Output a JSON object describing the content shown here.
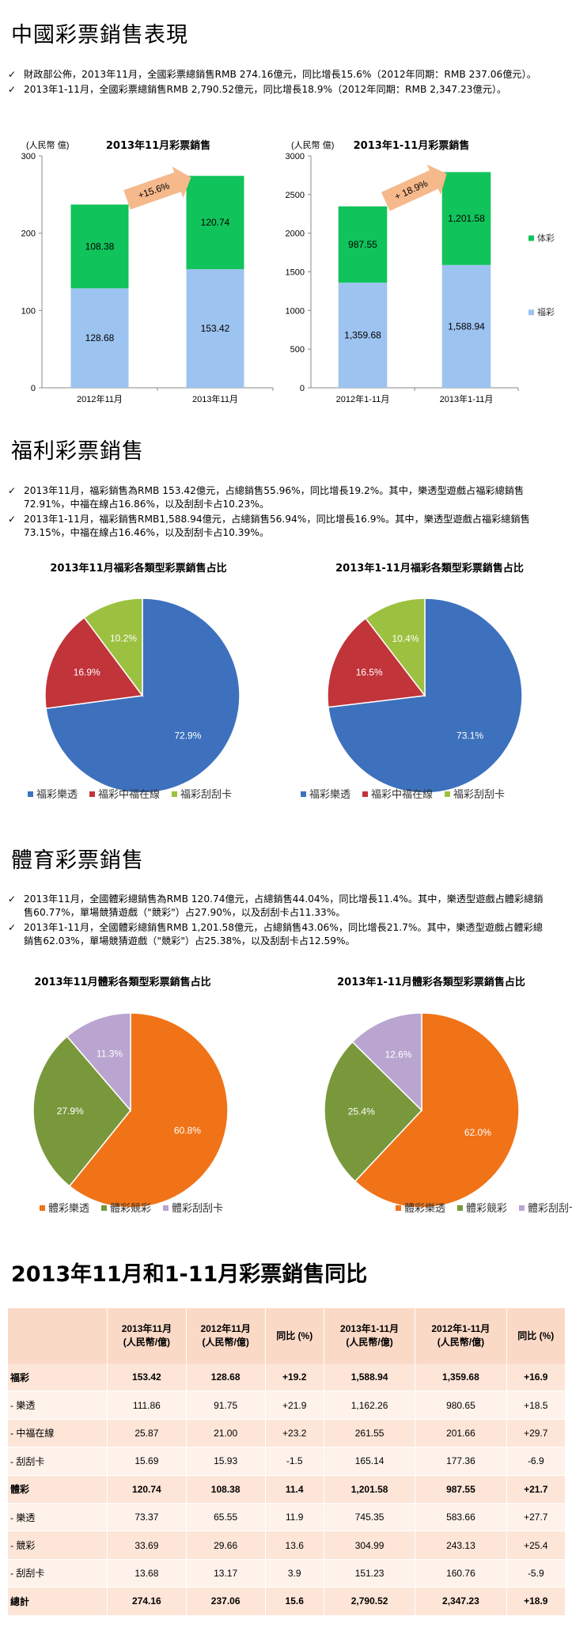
{
  "sections": {
    "overview_title": "中國彩票銷售表現",
    "welfare_title": "福利彩票銷售",
    "sports_title": "體育彩票銷售",
    "compare_title": "2013年11月和1-11月彩票銷售同比"
  },
  "bullets": {
    "overview": [
      "財政部公佈，2013年11月，全國彩票總銷售RMB 274.16億元，同比增長15.6%（2012年同期：RMB 237.06億元）。",
      "2013年1-11月，全國彩票總銷售RMB 2,790.52億元，同比增長18.9%（2012年同期：RMB 2,347.23億元）。"
    ],
    "welfare": [
      "2013年11月，福彩銷售為RMB 153.42億元，占總銷售55.96%，同比增長19.2%。其中，樂透型遊戲占福彩總銷售72.91%，中福在線占16.86%，以及刮刮卡占10.23%。",
      "2013年1-11月，福彩銷售RMB1,588.94億元，占總銷售56.94%，同比增長16.9%。其中，樂透型遊戲占福彩總銷售73.15%，中福在線占16.46%，以及刮刮卡占10.39%。"
    ],
    "sports": [
      "2013年11月，全國體彩總銷售為RMB 120.74億元，占總銷售44.04%，同比增長11.4%。其中，樂透型遊戲占體彩總銷售60.77%，單場競猜遊戲（\"競彩\"）占27.90%，以及刮刮卡占11.33%。",
      "2013年1-11月，全國體彩總銷售RMB 1,201.58億元，占總銷售43.06%，同比增長21.7%。其中，樂透型遊戲占體彩總銷售62.03%，單場競猜遊戲（\"競彩\"）占25.38%，以及刮刮卡占12.59%。"
    ]
  },
  "colors": {
    "welfare_bar": "#9dc3f0",
    "sports_bar": "#10c35a",
    "pie_blue": "#3d71bd",
    "pie_red": "#c1343a",
    "pie_green": "#9cc140",
    "pie_orange": "#f07318",
    "pie_olive": "#79983c",
    "pie_lilac": "#b9a5d0",
    "arrow": "#f6b98c"
  },
  "legend": {
    "sports": "体彩",
    "welfare": "福彩"
  },
  "chart_data": [
    {
      "type": "bar",
      "stacked": true,
      "title": "2013年11月彩票銷售",
      "ylabel": "(人民幣 億)",
      "ylim": [
        0,
        300
      ],
      "yticks": [
        "0",
        "100",
        "200",
        "300"
      ],
      "categories": [
        "2012年11月",
        "2013年11月"
      ],
      "series": [
        {
          "name": "福彩",
          "values": [
            128.68,
            153.42
          ],
          "labels": [
            "128.68",
            "153.42"
          ]
        },
        {
          "name": "体彩",
          "values": [
            108.38,
            120.74
          ],
          "labels": [
            "108.38",
            "120.74"
          ]
        }
      ],
      "annotation": "+15.6%"
    },
    {
      "type": "bar",
      "stacked": true,
      "title": "2013年1-11月彩票銷售",
      "ylabel": "(人民幣 億)",
      "ylim": [
        0,
        3000
      ],
      "yticks": [
        "0",
        "500",
        "1000",
        "1500",
        "2000",
        "2500",
        "3000"
      ],
      "categories": [
        "2012年1-11月",
        "2013年1-11月"
      ],
      "series": [
        {
          "name": "福彩",
          "values": [
            1359.68,
            1588.94
          ],
          "labels": [
            "1,359.68",
            "1,588.94"
          ]
        },
        {
          "name": "体彩",
          "values": [
            987.55,
            1201.58
          ],
          "labels": [
            "987.55",
            "1,201.58"
          ]
        }
      ],
      "annotation": "+ 18.9%",
      "legend": "right"
    },
    {
      "type": "pie",
      "title": "2013年11月福彩各類型彩票銷售占比",
      "slices": [
        {
          "name": "福彩樂透",
          "value": 72.9,
          "label": "72.9%"
        },
        {
          "name": "福彩中福在線",
          "value": 16.9,
          "label": "16.9%"
        },
        {
          "name": "福彩刮刮卡",
          "value": 10.2,
          "label": "10.2%"
        }
      ],
      "legend": "bottom"
    },
    {
      "type": "pie",
      "title": "2013年1-11月福彩各類型彩票銷售占比",
      "slices": [
        {
          "name": "福彩樂透",
          "value": 73.1,
          "label": "73.1%"
        },
        {
          "name": "福彩中福在線",
          "value": 16.5,
          "label": "16.5%"
        },
        {
          "name": "福彩刮刮卡",
          "value": 10.4,
          "label": "10.4%"
        }
      ],
      "legend": "bottom"
    },
    {
      "type": "pie",
      "title": "2013年11月體彩各類型彩票銷售占比",
      "slices": [
        {
          "name": "體彩樂透",
          "value": 60.8,
          "label": "60.8%"
        },
        {
          "name": "體彩競彩",
          "value": 27.9,
          "label": "27.9%"
        },
        {
          "name": "體彩刮刮卡",
          "value": 11.3,
          "label": "11.3%"
        }
      ],
      "legend": "bottom"
    },
    {
      "type": "pie",
      "title": "2013年1-11月體彩各類型彩票銷售占比",
      "slices": [
        {
          "name": "體彩樂透",
          "value": 62.0,
          "label": "62.0%"
        },
        {
          "name": "體彩競彩",
          "value": 25.4,
          "label": "25.4%"
        },
        {
          "name": "體彩刮刮卡",
          "value": 12.6,
          "label": "12.6%"
        }
      ],
      "legend": "bottom"
    },
    {
      "type": "table",
      "headers": [
        "",
        "2013年11月\n(人民幣/億)",
        "2012年11月\n(人民幣/億)",
        "同比 (%)",
        "2013年1-11月\n(人民幣/億)",
        "2012年1-11月\n(人民幣/億)",
        "同比 (%)"
      ],
      "rows": [
        {
          "cells": [
            "福彩",
            "153.42",
            "128.68",
            "+19.2",
            "1,588.94",
            "1,359.68",
            "+16.9"
          ],
          "bold": true
        },
        {
          "cells": [
            "- 樂透",
            "111.86",
            "91.75",
            "+21.9",
            "1,162.26",
            "980.65",
            "+18.5"
          ],
          "bold": false
        },
        {
          "cells": [
            "- 中福在線",
            "25.87",
            "21.00",
            "+23.2",
            "261.55",
            "201.66",
            "+29.7"
          ],
          "bold": false
        },
        {
          "cells": [
            "- 刮刮卡",
            "15.69",
            "15.93",
            "-1.5",
            "165.14",
            "177.36",
            "-6.9"
          ],
          "bold": false
        },
        {
          "cells": [
            "體彩",
            "120.74",
            "108.38",
            "11.4",
            "1,201.58",
            "987.55",
            "+21.7"
          ],
          "bold": true
        },
        {
          "cells": [
            "- 樂透",
            "73.37",
            "65.55",
            "11.9",
            "745.35",
            "583.66",
            "+27.7"
          ],
          "bold": false
        },
        {
          "cells": [
            "- 競彩",
            "33.69",
            "29.66",
            "13.6",
            "304.99",
            "243.13",
            "+25.4"
          ],
          "bold": false
        },
        {
          "cells": [
            "- 刮刮卡",
            "13.68",
            "13.17",
            "3.9",
            "151.23",
            "160.76",
            "-5.9"
          ],
          "bold": false
        },
        {
          "cells": [
            "總計",
            "274.16",
            "237.06",
            "15.6",
            "2,790.52",
            "2,347.23",
            "+18.9"
          ],
          "bold": true
        }
      ]
    }
  ]
}
